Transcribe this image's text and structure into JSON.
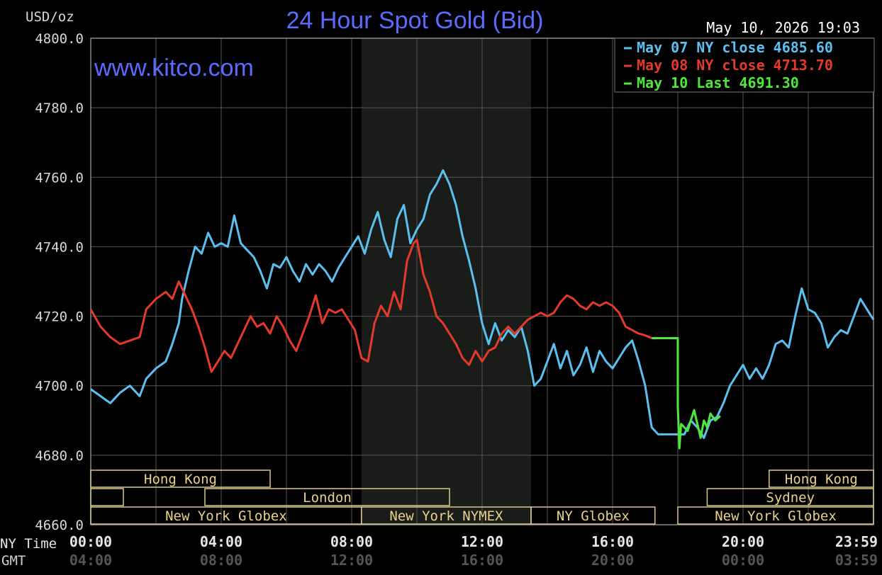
{
  "chart_data": {
    "type": "line",
    "title": "24 Hour Spot Gold (Bid)",
    "ylabel": "USD/oz",
    "brand": "www.kitco.com",
    "timestamp": "May 10, 2026 19:03",
    "ylim": [
      4660,
      4800
    ],
    "y_ticks": [
      "4800.0",
      "4780.0",
      "4760.0",
      "4740.0",
      "4720.0",
      "4700.0",
      "4680.0",
      "4660.0"
    ],
    "x_range_hours": [
      0,
      24
    ],
    "x_row_labels": [
      "NY Time",
      "GMT"
    ],
    "x_ticks_ny": [
      {
        "hour": 0,
        "label": "00:00"
      },
      {
        "hour": 4,
        "label": "04:00"
      },
      {
        "hour": 8,
        "label": "08:00"
      },
      {
        "hour": 12,
        "label": "12:00"
      },
      {
        "hour": 16,
        "label": "16:00"
      },
      {
        "hour": 20,
        "label": "20:00"
      },
      {
        "hour": 23.98,
        "label": "23:59"
      }
    ],
    "x_ticks_gmt": [
      {
        "hour": 0,
        "label": "04:00"
      },
      {
        "hour": 4,
        "label": "08:00"
      },
      {
        "hour": 8,
        "label": "12:00"
      },
      {
        "hour": 12,
        "label": "16:00"
      },
      {
        "hour": 16,
        "label": "20:00"
      },
      {
        "hour": 20,
        "label": "00:00"
      },
      {
        "hour": 23.98,
        "label": "03:59"
      }
    ],
    "grid": true,
    "shaded_period_hours": [
      8.3,
      13.5
    ],
    "legend_position": "top-right",
    "sessions": [
      {
        "label": "Hong Kong",
        "start": 0,
        "end": 5.5,
        "row": 0
      },
      {
        "label": "",
        "start": 0,
        "end": 1.0,
        "row": 1
      },
      {
        "label": "London",
        "start": 3.5,
        "end": 11.0,
        "row": 1
      },
      {
        "label": "New York Globex",
        "start": 0,
        "end": 8.3,
        "row": 2
      },
      {
        "label": "New York NYMEX",
        "start": 8.3,
        "end": 13.5,
        "row": 2
      },
      {
        "label": "NY Globex",
        "start": 13.5,
        "end": 17.3,
        "row": 2
      },
      {
        "label": "New York Globex",
        "start": 18.0,
        "end": 24,
        "row": 2
      },
      {
        "label": "Hong Kong",
        "start": 20.8,
        "end": 24,
        "row": 0
      },
      {
        "label": "Sydney",
        "start": 18.9,
        "end": 24,
        "row": 1
      }
    ],
    "series": [
      {
        "name": "May 07 NY close 4685.60",
        "color": "#5bc0f0",
        "points": [
          [
            0,
            4699
          ],
          [
            0.3,
            4697
          ],
          [
            0.6,
            4695
          ],
          [
            0.9,
            4698
          ],
          [
            1.2,
            4700
          ],
          [
            1.5,
            4697
          ],
          [
            1.7,
            4702
          ],
          [
            2.0,
            4705
          ],
          [
            2.3,
            4707
          ],
          [
            2.5,
            4712
          ],
          [
            2.7,
            4718
          ],
          [
            2.8,
            4725
          ],
          [
            3.0,
            4733
          ],
          [
            3.2,
            4740
          ],
          [
            3.4,
            4738
          ],
          [
            3.6,
            4744
          ],
          [
            3.8,
            4740
          ],
          [
            4.0,
            4741
          ],
          [
            4.2,
            4740
          ],
          [
            4.4,
            4749
          ],
          [
            4.6,
            4741
          ],
          [
            4.8,
            4739
          ],
          [
            5.0,
            4737
          ],
          [
            5.2,
            4733
          ],
          [
            5.4,
            4728
          ],
          [
            5.6,
            4735
          ],
          [
            5.8,
            4734
          ],
          [
            6.0,
            4737
          ],
          [
            6.2,
            4733
          ],
          [
            6.4,
            4730
          ],
          [
            6.6,
            4735
          ],
          [
            6.8,
            4732
          ],
          [
            7.0,
            4735
          ],
          [
            7.2,
            4733
          ],
          [
            7.4,
            4730
          ],
          [
            7.6,
            4734
          ],
          [
            7.8,
            4737
          ],
          [
            8.0,
            4740
          ],
          [
            8.2,
            4743
          ],
          [
            8.4,
            4738
          ],
          [
            8.6,
            4745
          ],
          [
            8.8,
            4750
          ],
          [
            9.0,
            4742
          ],
          [
            9.2,
            4737
          ],
          [
            9.4,
            4748
          ],
          [
            9.6,
            4752
          ],
          [
            9.8,
            4741
          ],
          [
            10.0,
            4745
          ],
          [
            10.2,
            4748
          ],
          [
            10.4,
            4755
          ],
          [
            10.6,
            4758
          ],
          [
            10.8,
            4762
          ],
          [
            11.0,
            4758
          ],
          [
            11.2,
            4752
          ],
          [
            11.4,
            4743
          ],
          [
            11.6,
            4736
          ],
          [
            11.8,
            4728
          ],
          [
            12.0,
            4718
          ],
          [
            12.2,
            4712
          ],
          [
            12.4,
            4718
          ],
          [
            12.6,
            4713
          ],
          [
            12.8,
            4716
          ],
          [
            13.0,
            4714
          ],
          [
            13.2,
            4717
          ],
          [
            13.4,
            4710
          ],
          [
            13.6,
            4700
          ],
          [
            13.8,
            4702
          ],
          [
            14.0,
            4707
          ],
          [
            14.2,
            4712
          ],
          [
            14.4,
            4705
          ],
          [
            14.6,
            4710
          ],
          [
            14.8,
            4703
          ],
          [
            15.0,
            4706
          ],
          [
            15.2,
            4711
          ],
          [
            15.4,
            4704
          ],
          [
            15.6,
            4710
          ],
          [
            15.8,
            4707
          ],
          [
            16.0,
            4705
          ],
          [
            16.2,
            4708
          ],
          [
            16.4,
            4711
          ],
          [
            16.6,
            4713
          ],
          [
            16.8,
            4707
          ],
          [
            17.0,
            4700
          ],
          [
            17.2,
            4688
          ],
          [
            17.4,
            4686
          ],
          [
            17.6,
            4686
          ],
          [
            17.8,
            4686
          ],
          [
            18.0,
            4686
          ],
          [
            18.2,
            4686
          ],
          [
            18.4,
            4690
          ],
          [
            18.6,
            4688
          ],
          [
            18.8,
            4685
          ],
          [
            19.0,
            4690
          ],
          [
            19.2,
            4691
          ],
          [
            19.4,
            4695
          ],
          [
            19.6,
            4700
          ],
          [
            19.8,
            4703
          ],
          [
            20.0,
            4706
          ],
          [
            20.2,
            4702
          ],
          [
            20.4,
            4705
          ],
          [
            20.6,
            4702
          ],
          [
            20.8,
            4706
          ],
          [
            21.0,
            4712
          ],
          [
            21.2,
            4713
          ],
          [
            21.4,
            4711
          ],
          [
            21.6,
            4720
          ],
          [
            21.8,
            4728
          ],
          [
            22.0,
            4722
          ],
          [
            22.2,
            4721
          ],
          [
            22.4,
            4718
          ],
          [
            22.6,
            4711
          ],
          [
            22.8,
            4714
          ],
          [
            23.0,
            4716
          ],
          [
            23.2,
            4715
          ],
          [
            23.4,
            4720
          ],
          [
            23.6,
            4725
          ],
          [
            23.8,
            4722
          ],
          [
            24.0,
            4719
          ]
        ]
      },
      {
        "name": "May 08 NY close 4713.70",
        "color": "#e53a2a",
        "points": [
          [
            0,
            4722
          ],
          [
            0.3,
            4717
          ],
          [
            0.6,
            4714
          ],
          [
            0.9,
            4712
          ],
          [
            1.2,
            4713
          ],
          [
            1.5,
            4714
          ],
          [
            1.7,
            4722
          ],
          [
            2.0,
            4725
          ],
          [
            2.3,
            4727
          ],
          [
            2.5,
            4725
          ],
          [
            2.7,
            4730
          ],
          [
            2.9,
            4726
          ],
          [
            3.1,
            4722
          ],
          [
            3.3,
            4717
          ],
          [
            3.5,
            4711
          ],
          [
            3.7,
            4704
          ],
          [
            3.9,
            4707
          ],
          [
            4.1,
            4710
          ],
          [
            4.3,
            4708
          ],
          [
            4.5,
            4712
          ],
          [
            4.7,
            4716
          ],
          [
            4.9,
            4720
          ],
          [
            5.1,
            4717
          ],
          [
            5.3,
            4718
          ],
          [
            5.5,
            4715
          ],
          [
            5.7,
            4720
          ],
          [
            5.9,
            4717
          ],
          [
            6.1,
            4713
          ],
          [
            6.3,
            4710
          ],
          [
            6.5,
            4715
          ],
          [
            6.7,
            4720
          ],
          [
            6.9,
            4726
          ],
          [
            7.1,
            4718
          ],
          [
            7.3,
            4722
          ],
          [
            7.5,
            4721
          ],
          [
            7.7,
            4722
          ],
          [
            7.9,
            4719
          ],
          [
            8.1,
            4716
          ],
          [
            8.3,
            4708
          ],
          [
            8.5,
            4707
          ],
          [
            8.7,
            4718
          ],
          [
            8.9,
            4723
          ],
          [
            9.1,
            4720
          ],
          [
            9.3,
            4727
          ],
          [
            9.5,
            4722
          ],
          [
            9.7,
            4736
          ],
          [
            9.9,
            4741
          ],
          [
            10.0,
            4742
          ],
          [
            10.2,
            4732
          ],
          [
            10.4,
            4727
          ],
          [
            10.6,
            4720
          ],
          [
            10.8,
            4718
          ],
          [
            11.0,
            4715
          ],
          [
            11.2,
            4712
          ],
          [
            11.4,
            4708
          ],
          [
            11.6,
            4706
          ],
          [
            11.8,
            4710
          ],
          [
            12.0,
            4707
          ],
          [
            12.2,
            4710
          ],
          [
            12.4,
            4711
          ],
          [
            12.6,
            4715
          ],
          [
            12.8,
            4717
          ],
          [
            13.0,
            4715
          ],
          [
            13.2,
            4717
          ],
          [
            13.4,
            4719
          ],
          [
            13.6,
            4720
          ],
          [
            13.8,
            4721
          ],
          [
            14.0,
            4720
          ],
          [
            14.2,
            4721
          ],
          [
            14.4,
            4724
          ],
          [
            14.6,
            4726
          ],
          [
            14.8,
            4725
          ],
          [
            15.0,
            4723
          ],
          [
            15.2,
            4722
          ],
          [
            15.4,
            4724
          ],
          [
            15.6,
            4723
          ],
          [
            15.8,
            4724
          ],
          [
            16.0,
            4723
          ],
          [
            16.2,
            4721
          ],
          [
            16.4,
            4717
          ],
          [
            16.6,
            4716
          ],
          [
            16.8,
            4715
          ],
          [
            17.0,
            4714.5
          ],
          [
            17.2,
            4713.7
          ]
        ]
      },
      {
        "name": "May 10 Last 4691.30",
        "color": "#4ee83a",
        "points": [
          [
            17.2,
            4713.7
          ],
          [
            17.6,
            4713.7
          ],
          [
            18.0,
            4713.7
          ],
          [
            18.0,
            4694
          ],
          [
            18.05,
            4682
          ],
          [
            18.1,
            4689
          ],
          [
            18.3,
            4687
          ],
          [
            18.5,
            4693
          ],
          [
            18.7,
            4685
          ],
          [
            18.8,
            4690
          ],
          [
            18.9,
            4688
          ],
          [
            19.0,
            4692
          ],
          [
            19.15,
            4690
          ],
          [
            19.3,
            4691.3
          ]
        ]
      }
    ]
  }
}
